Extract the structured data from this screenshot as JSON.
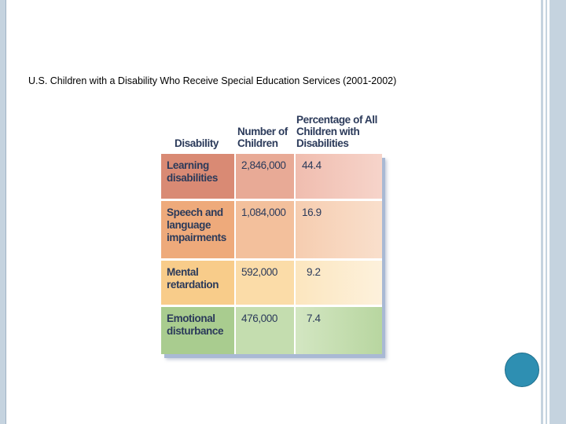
{
  "slide": {
    "title": "U.S. Children with a Disability Who Receive Special Education Services (2001-2002)"
  },
  "table": {
    "headers": {
      "disability": "Disability",
      "number": "Number of Children",
      "percentage": "Percentage of All Children with Disabilities"
    },
    "rows": [
      {
        "disability": "Learning disabilities",
        "number": "2,846,000",
        "percentage": "44.4"
      },
      {
        "disability": "Speech and language impairments",
        "number": "1,084,000",
        "percentage": "16.9"
      },
      {
        "disability": "Mental retardation",
        "number": "592,000",
        "percentage": "9.2"
      },
      {
        "disability": "Emotional disturbance",
        "number": "476,000",
        "percentage": "7.4"
      }
    ]
  },
  "colors": {
    "frame": "#c5d3df",
    "circle": "#2e8fb2",
    "row_learning": "#d98a74",
    "row_speech": "#eeaa7b",
    "row_mental": "#f8cc8a",
    "row_emotional": "#a9cc8f"
  }
}
